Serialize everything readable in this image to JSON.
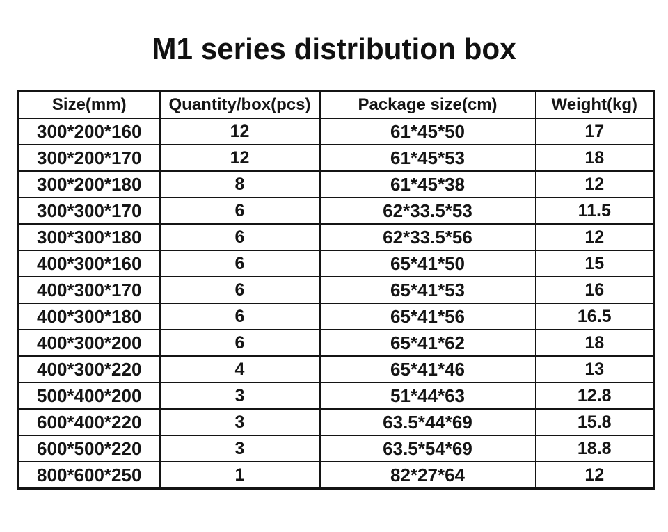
{
  "title": "M1 series distribution box",
  "table": {
    "columns": [
      "Size(mm)",
      "Quantity/box(pcs)",
      "Package size(cm)",
      "Weight(kg)"
    ],
    "rows": [
      [
        "300*200*160",
        "12",
        "61*45*50",
        "17"
      ],
      [
        "300*200*170",
        "12",
        "61*45*53",
        "18"
      ],
      [
        "300*200*180",
        "8",
        "61*45*38",
        "12"
      ],
      [
        "300*300*170",
        "6",
        "62*33.5*53",
        "11.5"
      ],
      [
        "300*300*180",
        "6",
        "62*33.5*56",
        "12"
      ],
      [
        "400*300*160",
        "6",
        "65*41*50",
        "15"
      ],
      [
        "400*300*170",
        "6",
        "65*41*53",
        "16"
      ],
      [
        "400*300*180",
        "6",
        "65*41*56",
        "16.5"
      ],
      [
        "400*300*200",
        "6",
        "65*41*62",
        "18"
      ],
      [
        "400*300*220",
        "4",
        "65*41*46",
        "13"
      ],
      [
        "500*400*200",
        "3",
        "51*44*63",
        "12.8"
      ],
      [
        "600*400*220",
        "3",
        "63.5*44*69",
        "15.8"
      ],
      [
        "600*500*220",
        "3",
        "63.5*54*69",
        "18.8"
      ],
      [
        "800*600*250",
        "1",
        "82*27*64",
        "12"
      ]
    ]
  }
}
